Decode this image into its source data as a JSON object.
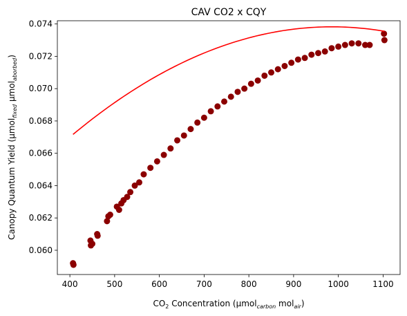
{
  "chart_data": {
    "type": "scatter",
    "title": "CAV CO2 x CQY",
    "xlabel": {
      "base": "CO",
      "sub1": "2",
      "mid": " Concentration (µmol",
      "sub2": "carbon",
      "mid2": " mol",
      "sub3": "air",
      "end": ")"
    },
    "ylabel": {
      "base": "Canopy Quantum Yield (µmol",
      "sub1": "fixed",
      "mid": " µmol",
      "sub2": "aborbed",
      "end": ")"
    },
    "xlim": [
      372,
      1138
    ],
    "ylim": [
      0.0585,
      0.0742
    ],
    "x_ticks": [
      400,
      500,
      600,
      700,
      800,
      900,
      1000,
      1100
    ],
    "x_tick_labels": [
      "400",
      "500",
      "600",
      "700",
      "800",
      "900",
      "1000",
      "1100"
    ],
    "y_ticks": [
      0.06,
      0.062,
      0.064,
      0.066,
      0.068,
      0.07,
      0.072,
      0.074
    ],
    "y_tick_labels": [
      "0.060",
      "0.062",
      "0.064",
      "0.066",
      "0.068",
      "0.070",
      "0.072",
      "0.074"
    ],
    "grid": false,
    "series": [
      {
        "kind": "scatter",
        "color": "#8b0000",
        "points": [
          [
            407,
            0.0592
          ],
          [
            408,
            0.0591
          ],
          [
            446,
            0.0606
          ],
          [
            447,
            0.0603
          ],
          [
            450,
            0.0604
          ],
          [
            461,
            0.061
          ],
          [
            462,
            0.0609
          ],
          [
            483,
            0.0618
          ],
          [
            486,
            0.0621
          ],
          [
            490,
            0.0622
          ],
          [
            505,
            0.0627
          ],
          [
            510,
            0.0625
          ],
          [
            515,
            0.0629
          ],
          [
            520,
            0.0631
          ],
          [
            528,
            0.0633
          ],
          [
            535,
            0.0636
          ],
          [
            545,
            0.064
          ],
          [
            555,
            0.0642
          ],
          [
            565,
            0.0647
          ],
          [
            580,
            0.0651
          ],
          [
            595,
            0.0655
          ],
          [
            610,
            0.0659
          ],
          [
            625,
            0.0663
          ],
          [
            640,
            0.0668
          ],
          [
            655,
            0.0671
          ],
          [
            670,
            0.0675
          ],
          [
            685,
            0.0679
          ],
          [
            700,
            0.0682
          ],
          [
            715,
            0.0686
          ],
          [
            730,
            0.0689
          ],
          [
            745,
            0.0692
          ],
          [
            760,
            0.0695
          ],
          [
            775,
            0.0698
          ],
          [
            790,
            0.07
          ],
          [
            805,
            0.0703
          ],
          [
            820,
            0.0705
          ],
          [
            835,
            0.0708
          ],
          [
            850,
            0.071
          ],
          [
            865,
            0.0712
          ],
          [
            880,
            0.0714
          ],
          [
            895,
            0.0716
          ],
          [
            910,
            0.0718
          ],
          [
            925,
            0.0719
          ],
          [
            940,
            0.0721
          ],
          [
            955,
            0.0722
          ],
          [
            970,
            0.0723
          ],
          [
            985,
            0.0725
          ],
          [
            1000,
            0.0726
          ],
          [
            1015,
            0.0727
          ],
          [
            1030,
            0.0728
          ],
          [
            1045,
            0.0728
          ],
          [
            1060,
            0.0727
          ],
          [
            1070,
            0.0727
          ],
          [
            1102,
            0.0734
          ],
          [
            1103,
            0.073
          ]
        ]
      },
      {
        "kind": "fit_line",
        "color": "#ff0000",
        "x_range": [
          407,
          1103
        ],
        "coefficients": {
          "a": -1.99e-08,
          "b": 3.922e-05,
          "c": 0.0545
        }
      }
    ]
  }
}
